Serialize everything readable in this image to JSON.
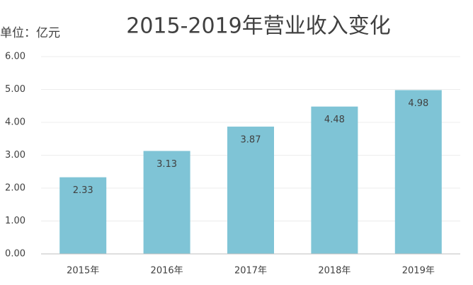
{
  "chart_data": {
    "type": "bar",
    "title": "2015-2019年营业收入变化",
    "ylabel": "单位：亿元",
    "categories": [
      "2015年",
      "2016年",
      "2017年",
      "2018年",
      "2019年"
    ],
    "values": [
      2.33,
      3.13,
      3.87,
      4.48,
      4.98
    ],
    "color": "#7fc4d6",
    "ylim": [
      0,
      6
    ],
    "yticks": [
      {
        "value": 0,
        "label": "0.00"
      },
      {
        "value": 1,
        "label": "1.00"
      },
      {
        "value": 2,
        "label": "2.00"
      },
      {
        "value": 3,
        "label": "3.00"
      },
      {
        "value": 4,
        "label": "4.00"
      },
      {
        "value": 5,
        "label": "5.00"
      },
      {
        "value": 6,
        "label": "6.00"
      }
    ],
    "grid": true
  }
}
